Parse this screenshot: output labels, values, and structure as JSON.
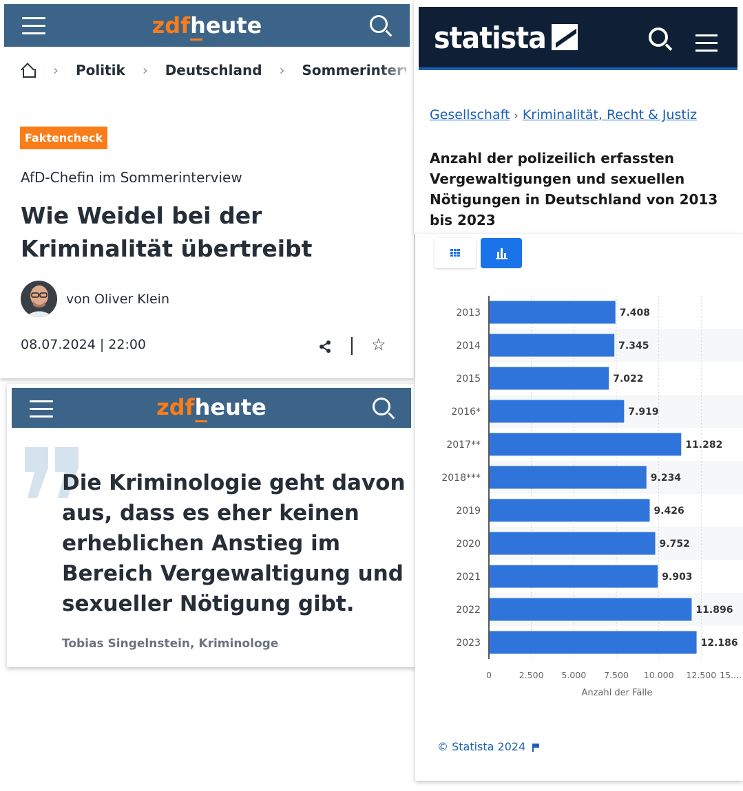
{
  "zdf": {
    "logo_left": "zdf",
    "logo_right": "heute"
  },
  "article": {
    "breadcrumbs": [
      "Politik",
      "Deutschland",
      "Sommerinterv"
    ],
    "badge": "Faktencheck",
    "kicker": "AfD-Chefin im Sommerinterview",
    "headline": "Wie Weidel bei der Kriminalität übertreibt",
    "author": "von Oliver Klein",
    "date": "08.07.2024 | 22:00"
  },
  "quote": {
    "text": "Die Kriminologie geht davon aus, dass es eher keinen erheblichen Anstieg im Bereich Vergewaltigung und sexueller Nötigung gibt.",
    "author": "Tobias Singelnstein, Kriminologe"
  },
  "statista": {
    "logo": "statista",
    "breadcrumbs": [
      "Gesellschaft",
      "Kriminalität, Recht & Justiz"
    ],
    "breadcrumb_sep": "›",
    "title": "Anzahl der polizeilich erfassten Vergewaltigungen und sexuellen Nötigungen in Deutschland von 2013 bis 2023",
    "copyright": "© Statista 2024"
  },
  "colors": {
    "zdf_blue": "#3c6488",
    "zdf_orange": "#fa7d19",
    "statista_navy": "#0f1f35",
    "bar_blue": "#2f74da"
  },
  "chart_data": {
    "type": "bar",
    "orientation": "horizontal",
    "categories": [
      "2013",
      "2014",
      "2015",
      "2016*",
      "2017**",
      "2018***",
      "2019",
      "2020",
      "2021",
      "2022",
      "2023"
    ],
    "values": [
      7408,
      7345,
      7022,
      7919,
      11282,
      9234,
      9426,
      9752,
      9903,
      11896,
      12186
    ],
    "value_labels": [
      "7.408",
      "7.345",
      "7.022",
      "7.919",
      "11.282",
      "9.234",
      "9.426",
      "9.752",
      "9.903",
      "11.896",
      "12.186"
    ],
    "xlabel": "Anzahl der Fälle",
    "xlim": [
      0,
      15000
    ],
    "xticks": [
      0,
      2500,
      5000,
      7500,
      10000,
      12500,
      15000
    ],
    "xtick_labels": [
      "0",
      "2.500",
      "5.000",
      "7.500",
      "10.000",
      "12.500",
      "15...."
    ],
    "grid": true
  }
}
